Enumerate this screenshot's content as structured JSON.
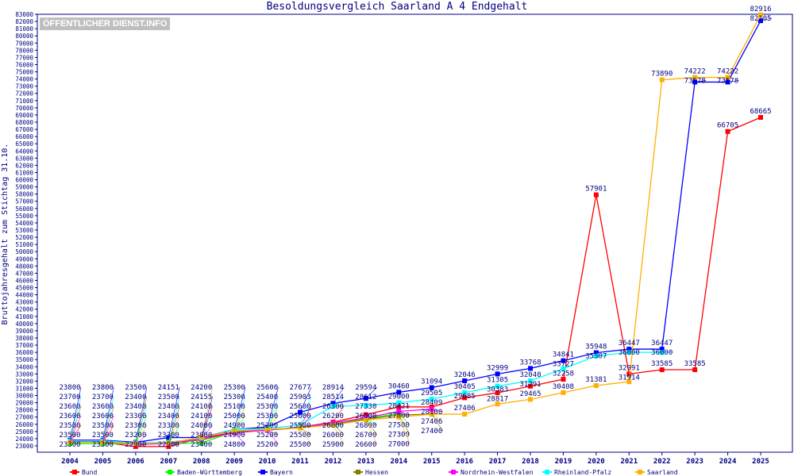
{
  "chart_data": {
    "type": "line",
    "title": "Besoldungsvergleich Saarland A 4 Endgehalt",
    "ylabel": "Bruttojahresgehalt zum Stichtag 31.10.",
    "xlabel": "",
    "ylim": [
      22000,
      83000
    ],
    "yticks_step": 1000,
    "grid": false,
    "legend_position": "bottom",
    "logo": "ÖFFENTLICHER DIENST.INFO",
    "categories": [
      "2004",
      "2005",
      "2006",
      "2007",
      "2008",
      "2009",
      "2010",
      "2011",
      "2012",
      "2013",
      "2014",
      "2015",
      "2016",
      "2017",
      "2018",
      "2019",
      "2020",
      "2021",
      "2022",
      "2023",
      "2024",
      "2025"
    ],
    "series": [
      {
        "name": "Bund",
        "color": "#ff0000",
        "values": [
          23500,
          23500,
          22900,
          22900,
          24100,
          24900,
          25200,
          25600,
          26300,
          27330,
          28421,
          28409,
          29685,
          30383,
          31291,
          32258,
          57901,
          32991,
          33585,
          33585,
          66705,
          68665
        ]
      },
      {
        "name": "Baden-Württemberg",
        "color": "#00ff00",
        "values": [
          23300,
          23300,
          23300,
          23300,
          23400,
          25000,
          25300,
          25500,
          26000,
          26800,
          27500,
          null,
          null,
          null,
          null,
          null,
          null,
          null,
          null,
          null,
          null,
          null
        ]
      },
      {
        "name": "Bayern",
        "color": "#0000ff",
        "values": [
          23800,
          23800,
          23500,
          24151,
          24155,
          25300,
          25600,
          27677,
          28914,
          29594,
          30460,
          31094,
          32046,
          32999,
          33768,
          34841,
          35948,
          36447,
          36447,
          73578,
          73578,
          82105
        ]
      },
      {
        "name": "Hessen",
        "color": "#808000",
        "values": [
          23600,
          23600,
          23400,
          23400,
          23800,
          24900,
          25200,
          25500,
          26000,
          26700,
          27300,
          27400,
          null,
          null,
          null,
          null,
          null,
          null,
          null,
          null,
          null,
          null
        ]
      },
      {
        "name": "Nordrhein-Westfalen",
        "color": "#ff00ff",
        "values": [
          23600,
          23600,
          23200,
          23300,
          24000,
          24800,
          25200,
          25600,
          26200,
          26900,
          27800,
          28100,
          null,
          null,
          null,
          null,
          null,
          null,
          null,
          null,
          null,
          null
        ]
      },
      {
        "name": "Rheinland-Pfalz",
        "color": "#00ffff",
        "values": [
          23700,
          23700,
          23400,
          23500,
          24100,
          25300,
          25400,
          25903,
          28514,
          28612,
          29000,
          29505,
          30405,
          31305,
          32040,
          33727,
          35507,
          36000,
          36000,
          null,
          null,
          null
        ]
      },
      {
        "name": "Saarland",
        "color": "#ffb000",
        "values": [
          23500,
          23500,
          23300,
          23400,
          24200,
          25100,
          25300,
          25500,
          25900,
          26600,
          27000,
          27406,
          27406,
          28817,
          29465,
          30408,
          31381,
          31914,
          73890,
          74222,
          74222,
          82916
        ]
      }
    ]
  }
}
